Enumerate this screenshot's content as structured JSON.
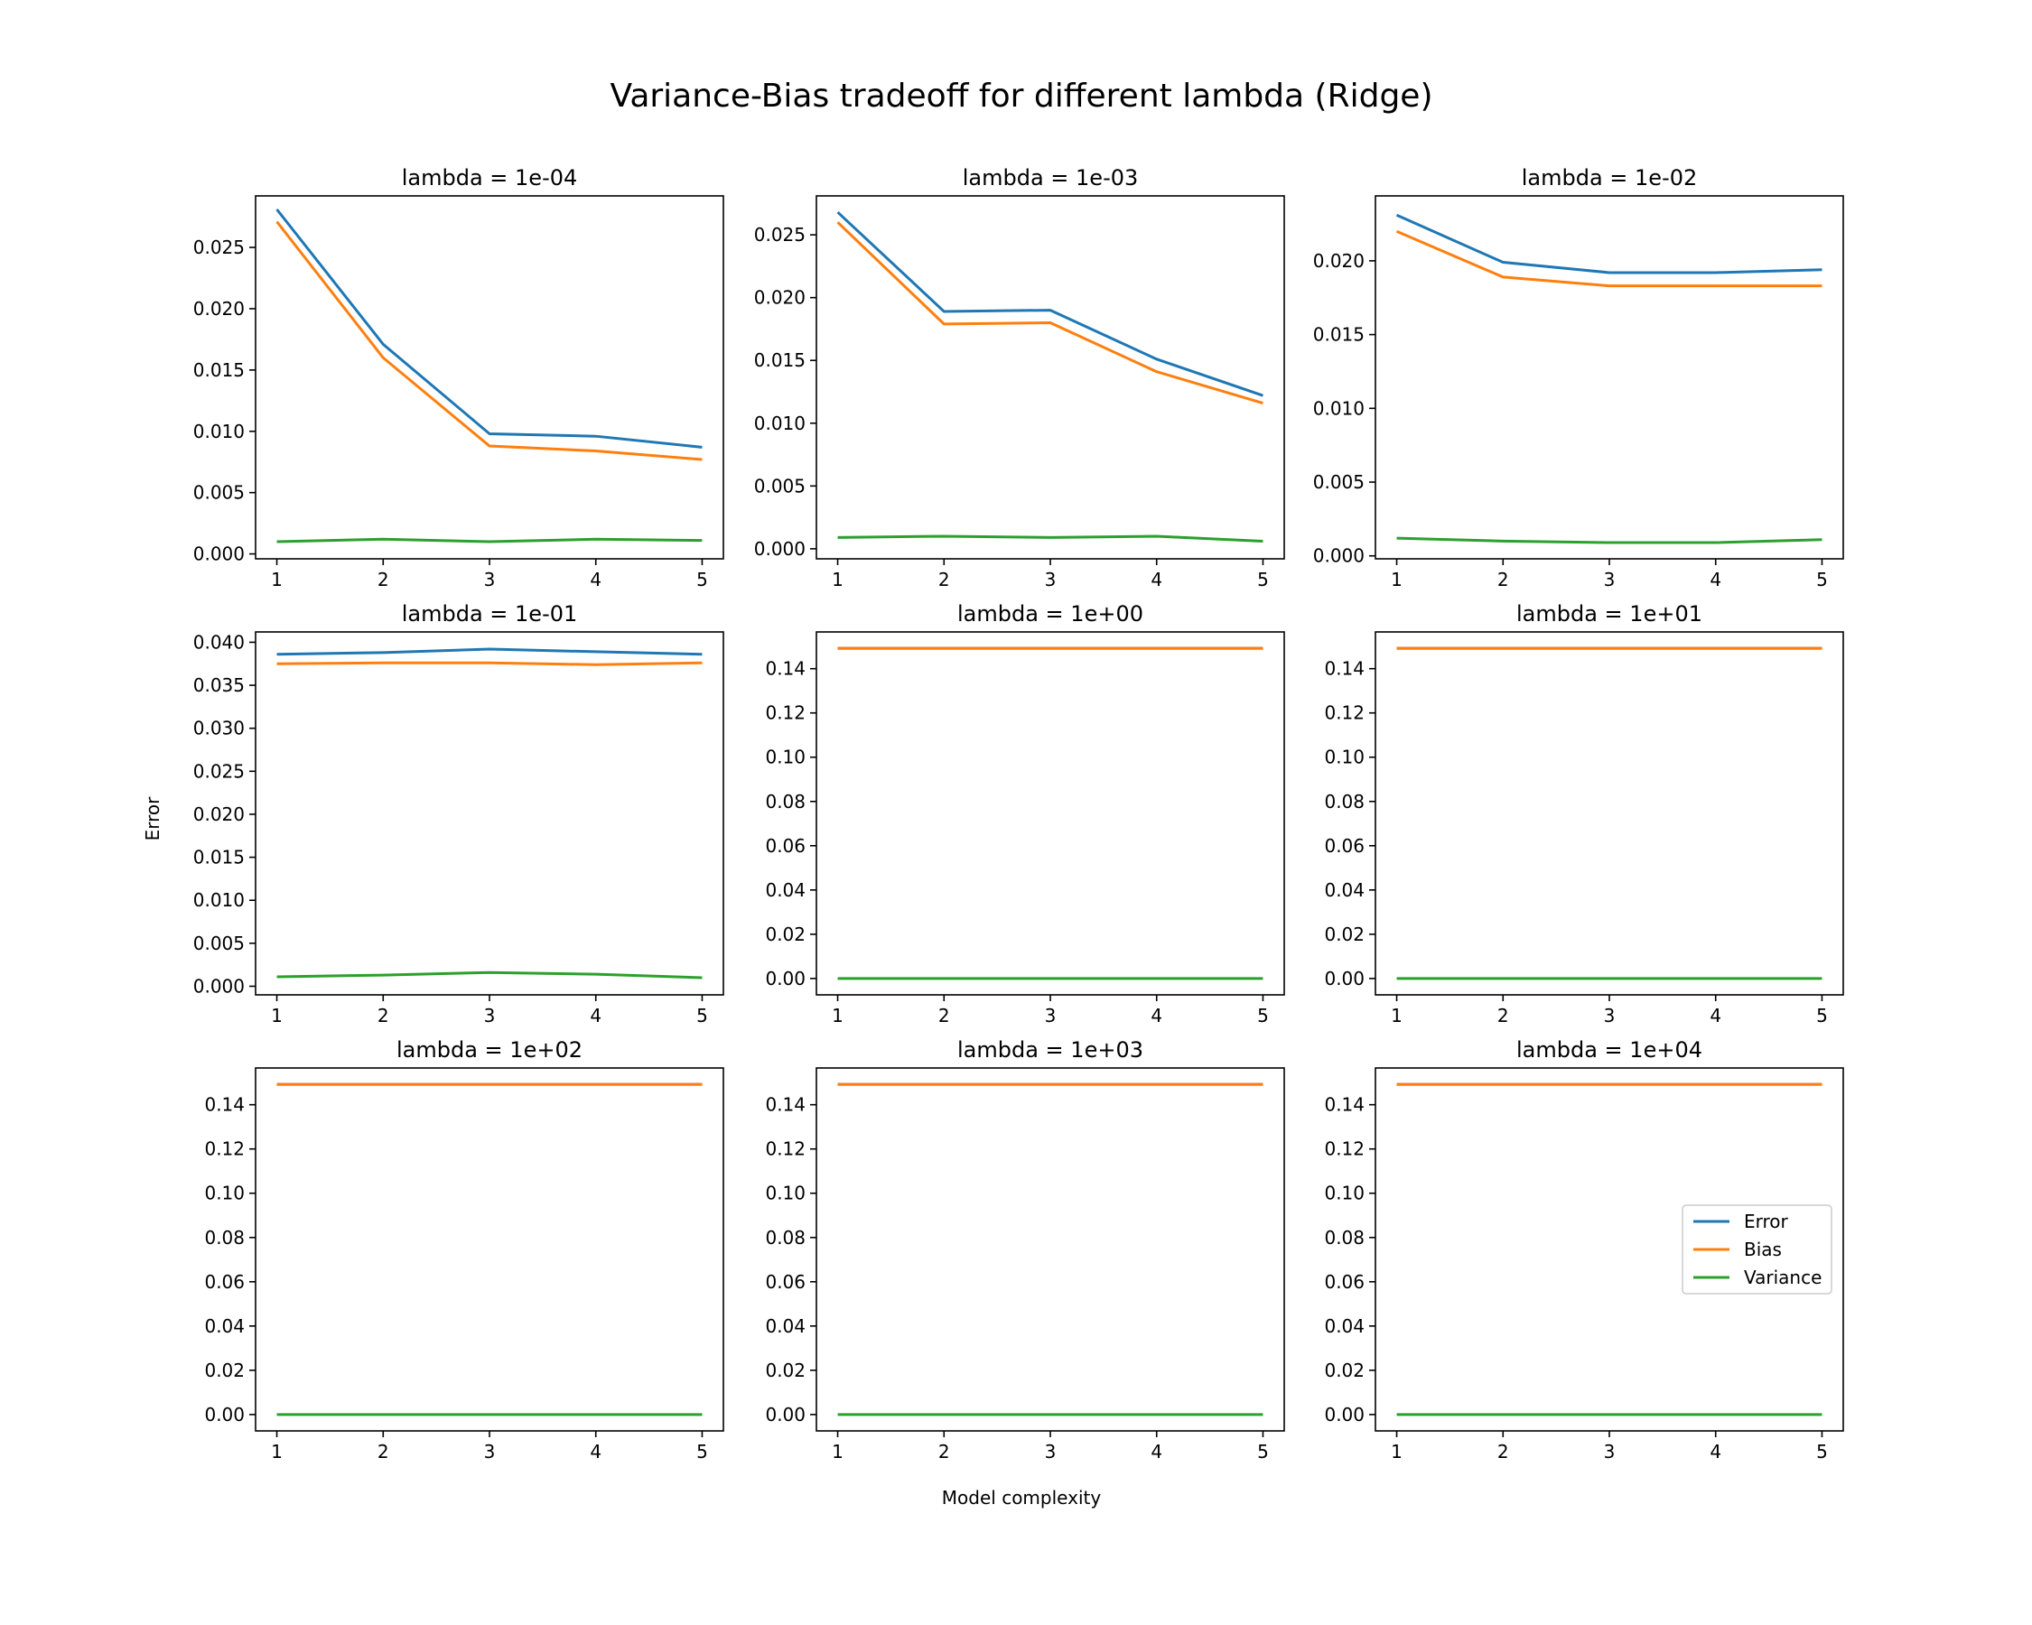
{
  "figure": {
    "title": "Variance-Bias tradeoff for different lambda (Ridge)",
    "xlabel": "Model complexity",
    "ylabel": "Error"
  },
  "colors": {
    "Error": "#1f77b4",
    "Bias": "#ff7f0e",
    "Variance": "#2ca02c"
  },
  "legend": {
    "placement": "center-right of last panel",
    "entries": [
      "Error",
      "Bias",
      "Variance"
    ]
  },
  "chart_data": [
    {
      "type": "line",
      "title": "lambda = 1e-04",
      "x": [
        1,
        2,
        3,
        4,
        5
      ],
      "ylim": [
        -0.0004,
        0.0292
      ],
      "yticks": [
        "0.000",
        "0.005",
        "0.010",
        "0.015",
        "0.020",
        "0.025"
      ],
      "series": [
        {
          "name": "Error",
          "values": [
            0.0281,
            0.0171,
            0.0098,
            0.0096,
            0.0087
          ]
        },
        {
          "name": "Bias",
          "values": [
            0.0271,
            0.016,
            0.0088,
            0.0084,
            0.0077
          ]
        },
        {
          "name": "Variance",
          "values": [
            0.001,
            0.0012,
            0.001,
            0.0012,
            0.0011
          ]
        }
      ]
    },
    {
      "type": "line",
      "title": "lambda = 1e-03",
      "x": [
        1,
        2,
        3,
        4,
        5
      ],
      "ylim": [
        -0.0008,
        0.0281
      ],
      "yticks": [
        "0.000",
        "0.005",
        "0.010",
        "0.015",
        "0.020",
        "0.025"
      ],
      "series": [
        {
          "name": "Error",
          "values": [
            0.0268,
            0.0189,
            0.019,
            0.0151,
            0.0122
          ]
        },
        {
          "name": "Bias",
          "values": [
            0.026,
            0.0179,
            0.018,
            0.0141,
            0.0116
          ]
        },
        {
          "name": "Variance",
          "values": [
            0.0009,
            0.001,
            0.0009,
            0.001,
            0.0006
          ]
        }
      ]
    },
    {
      "type": "line",
      "title": "lambda = 1e-02",
      "x": [
        1,
        2,
        3,
        4,
        5
      ],
      "ylim": [
        -0.0002,
        0.0244
      ],
      "yticks": [
        "0.000",
        "0.005",
        "0.010",
        "0.015",
        "0.020"
      ],
      "series": [
        {
          "name": "Error",
          "values": [
            0.0231,
            0.0199,
            0.0192,
            0.0192,
            0.0194
          ]
        },
        {
          "name": "Bias",
          "values": [
            0.022,
            0.0189,
            0.0183,
            0.0183,
            0.0183
          ]
        },
        {
          "name": "Variance",
          "values": [
            0.0012,
            0.001,
            0.0009,
            0.0009,
            0.0011
          ]
        }
      ]
    },
    {
      "type": "line",
      "title": "lambda = 1e-01",
      "x": [
        1,
        2,
        3,
        4,
        5
      ],
      "ylim": [
        -0.001,
        0.0412
      ],
      "yticks": [
        "0.000",
        "0.005",
        "0.010",
        "0.015",
        "0.020",
        "0.025",
        "0.030",
        "0.035",
        "0.040"
      ],
      "series": [
        {
          "name": "Error",
          "values": [
            0.0386,
            0.0388,
            0.0392,
            0.0389,
            0.0386
          ]
        },
        {
          "name": "Bias",
          "values": [
            0.0375,
            0.0376,
            0.0376,
            0.0374,
            0.0376
          ]
        },
        {
          "name": "Variance",
          "values": [
            0.0011,
            0.0013,
            0.0016,
            0.0014,
            0.001
          ]
        }
      ]
    },
    {
      "type": "line",
      "title": "lambda = 1e+00",
      "x": [
        1,
        2,
        3,
        4,
        5
      ],
      "ylim": [
        -0.0074,
        0.1566
      ],
      "yticks": [
        "0.00",
        "0.02",
        "0.04",
        "0.06",
        "0.08",
        "0.10",
        "0.12",
        "0.14"
      ],
      "series": [
        {
          "name": "Error",
          "values": [
            0.1492,
            0.1492,
            0.1492,
            0.1492,
            0.1492
          ]
        },
        {
          "name": "Bias",
          "values": [
            0.1492,
            0.1492,
            0.1492,
            0.1492,
            0.1492
          ]
        },
        {
          "name": "Variance",
          "values": [
            0.0,
            0.0,
            0.0,
            0.0,
            0.0
          ]
        }
      ]
    },
    {
      "type": "line",
      "title": "lambda = 1e+01",
      "x": [
        1,
        2,
        3,
        4,
        5
      ],
      "ylim": [
        -0.0074,
        0.1566
      ],
      "yticks": [
        "0.00",
        "0.02",
        "0.04",
        "0.06",
        "0.08",
        "0.10",
        "0.12",
        "0.14"
      ],
      "series": [
        {
          "name": "Error",
          "values": [
            0.1492,
            0.1492,
            0.1492,
            0.1492,
            0.1492
          ]
        },
        {
          "name": "Bias",
          "values": [
            0.1492,
            0.1492,
            0.1492,
            0.1492,
            0.1492
          ]
        },
        {
          "name": "Variance",
          "values": [
            0.0,
            0.0,
            0.0,
            0.0,
            0.0
          ]
        }
      ]
    },
    {
      "type": "line",
      "title": "lambda = 1e+02",
      "x": [
        1,
        2,
        3,
        4,
        5
      ],
      "ylim": [
        -0.0074,
        0.1566
      ],
      "yticks": [
        "0.00",
        "0.02",
        "0.04",
        "0.06",
        "0.08",
        "0.10",
        "0.12",
        "0.14"
      ],
      "series": [
        {
          "name": "Error",
          "values": [
            0.1492,
            0.1492,
            0.1492,
            0.1492,
            0.1492
          ]
        },
        {
          "name": "Bias",
          "values": [
            0.1492,
            0.1492,
            0.1492,
            0.1492,
            0.1492
          ]
        },
        {
          "name": "Variance",
          "values": [
            0.0,
            0.0,
            0.0,
            0.0,
            0.0
          ]
        }
      ]
    },
    {
      "type": "line",
      "title": "lambda = 1e+03",
      "x": [
        1,
        2,
        3,
        4,
        5
      ],
      "ylim": [
        -0.0074,
        0.1566
      ],
      "yticks": [
        "0.00",
        "0.02",
        "0.04",
        "0.06",
        "0.08",
        "0.10",
        "0.12",
        "0.14"
      ],
      "series": [
        {
          "name": "Error",
          "values": [
            0.1492,
            0.1492,
            0.1492,
            0.1492,
            0.1492
          ]
        },
        {
          "name": "Bias",
          "values": [
            0.1492,
            0.1492,
            0.1492,
            0.1492,
            0.1492
          ]
        },
        {
          "name": "Variance",
          "values": [
            0.0,
            0.0,
            0.0,
            0.0,
            0.0
          ]
        }
      ]
    },
    {
      "type": "line",
      "title": "lambda = 1e+04",
      "x": [
        1,
        2,
        3,
        4,
        5
      ],
      "ylim": [
        -0.0074,
        0.1566
      ],
      "yticks": [
        "0.00",
        "0.02",
        "0.04",
        "0.06",
        "0.08",
        "0.10",
        "0.12",
        "0.14"
      ],
      "series": [
        {
          "name": "Error",
          "values": [
            0.1492,
            0.1492,
            0.1492,
            0.1492,
            0.1492
          ]
        },
        {
          "name": "Bias",
          "values": [
            0.1492,
            0.1492,
            0.1492,
            0.1492,
            0.1492
          ]
        },
        {
          "name": "Variance",
          "values": [
            0.0,
            0.0,
            0.0,
            0.0,
            0.0
          ]
        }
      ]
    }
  ]
}
